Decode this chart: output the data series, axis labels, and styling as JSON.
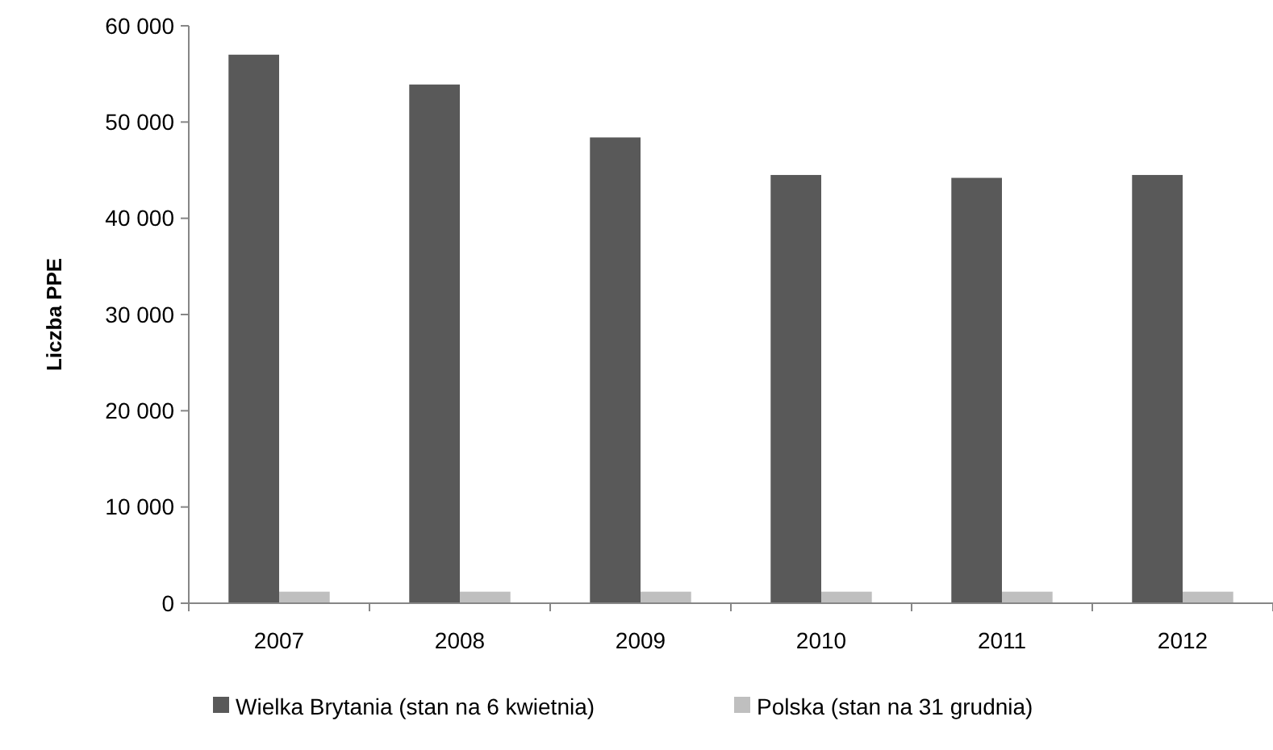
{
  "chart_data": {
    "type": "bar",
    "ylabel": "Liczba PPE",
    "categories": [
      "2007",
      "2008",
      "2009",
      "2010",
      "2011",
      "2012"
    ],
    "series": [
      {
        "name": "Wielka Brytania (stan na 6 kwietnia)",
        "color": "#595959",
        "values": [
          57000,
          53900,
          48400,
          44500,
          44200,
          44500
        ]
      },
      {
        "name": "Polska (stan na 31 grudnia)",
        "color": "#bfbfbf",
        "values": [
          1200,
          1200,
          1200,
          1200,
          1200,
          1200
        ]
      }
    ],
    "ylim": [
      0,
      60000
    ],
    "yticks": [
      {
        "value": 0,
        "label": "0"
      },
      {
        "value": 10000,
        "label": "10 000"
      },
      {
        "value": 20000,
        "label": "20 000"
      },
      {
        "value": 30000,
        "label": "30 000"
      },
      {
        "value": 40000,
        "label": "40 000"
      },
      {
        "value": 50000,
        "label": "50 000"
      },
      {
        "value": 60000,
        "label": "60 000"
      }
    ],
    "grid": false,
    "legend": "bottom"
  }
}
